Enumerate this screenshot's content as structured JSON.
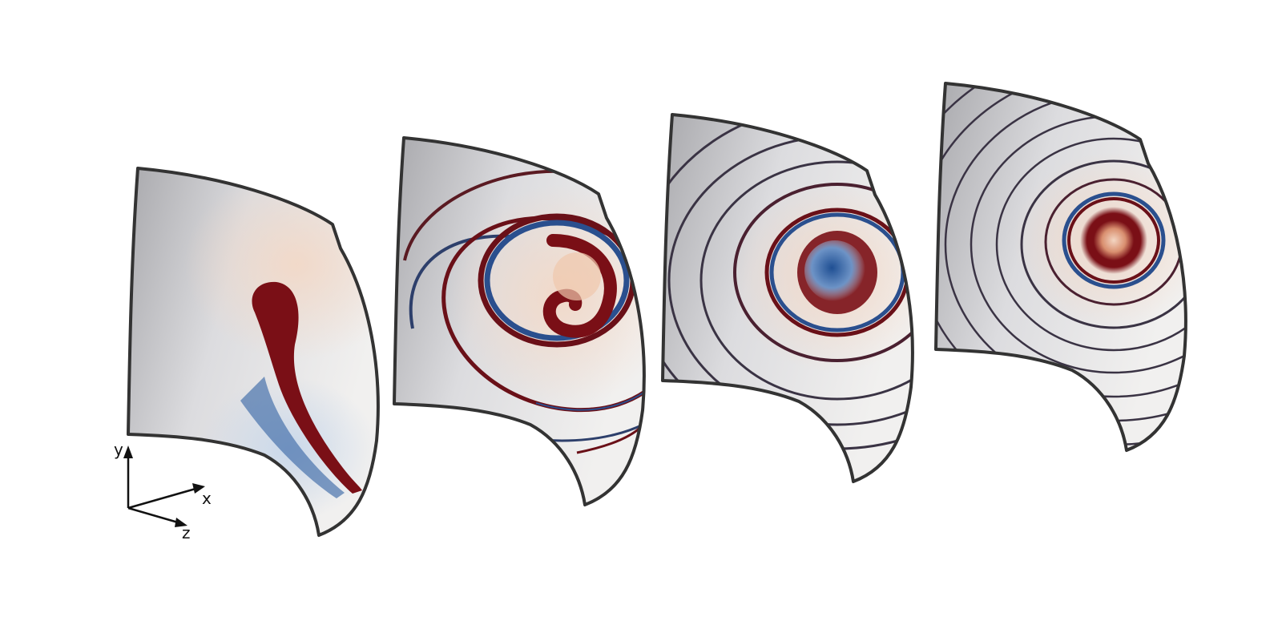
{
  "figure": {
    "panel_count": 4,
    "panels": [
      {
        "stage": 1,
        "pattern": "single-curl"
      },
      {
        "stage": 2,
        "pattern": "spiral"
      },
      {
        "stage": 3,
        "pattern": "spiral"
      },
      {
        "stage": 4,
        "pattern": "spiral"
      }
    ],
    "colors": {
      "background": "#ffffff",
      "surface": "#d6d6d8",
      "warm": "#7a0f16",
      "cool": "#2a4f8e",
      "outline": "#333333"
    }
  },
  "axes": {
    "x": "x",
    "y": "y",
    "z": "z"
  }
}
